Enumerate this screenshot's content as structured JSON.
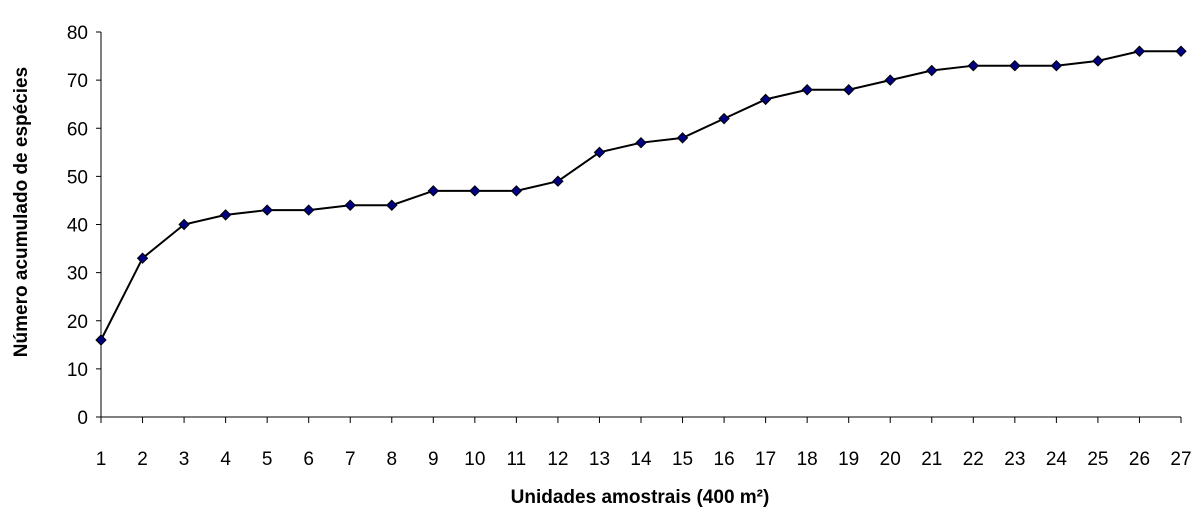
{
  "chart_data": {
    "type": "line",
    "title": "",
    "xlabel": "Unidades amostrais (400 m²)",
    "ylabel": "Número acumulado de espécies",
    "categories": [
      "1",
      "2",
      "3",
      "4",
      "5",
      "6",
      "7",
      "8",
      "9",
      "10",
      "11",
      "12",
      "13",
      "14",
      "15",
      "16",
      "17",
      "18",
      "19",
      "20",
      "21",
      "22",
      "23",
      "24",
      "25",
      "26",
      "27"
    ],
    "series": [
      {
        "values": [
          16,
          33,
          40,
          42,
          43,
          43,
          44,
          44,
          47,
          47,
          47,
          49,
          55,
          57,
          58,
          62,
          66,
          68,
          68,
          70,
          72,
          73,
          73,
          73,
          74,
          76,
          76
        ],
        "line_color": "#000000",
        "marker_color": "#000080",
        "marker": "diamond"
      }
    ],
    "ylim": [
      0,
      80
    ],
    "yticks": [
      0,
      10,
      20,
      30,
      40,
      50,
      60,
      70,
      80
    ],
    "grid": false,
    "legend": "none"
  }
}
